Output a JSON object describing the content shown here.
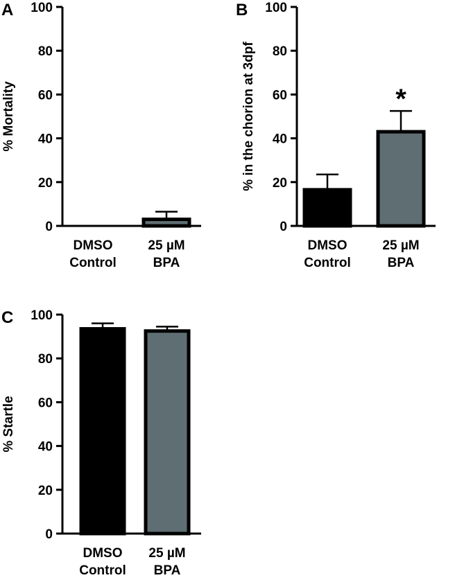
{
  "figure": {
    "panels": [
      {
        "id": "A",
        "letter": "A"
      },
      {
        "id": "B",
        "letter": "B"
      },
      {
        "id": "C",
        "letter": "C"
      }
    ]
  },
  "chart_data": [
    {
      "panel": "A",
      "type": "bar",
      "ylabel": "% Mortality",
      "ylim": [
        0,
        100
      ],
      "yticks": [
        0,
        20,
        40,
        60,
        80,
        100
      ],
      "categories": [
        {
          "line1": "DMSO",
          "line2": "Control"
        },
        {
          "line1": "25 µM",
          "line2": "BPA"
        }
      ],
      "values": [
        0,
        3
      ],
      "error": [
        0,
        3.5
      ],
      "bar_colors": [
        "#000000",
        "#5f6e73"
      ],
      "annotations": [],
      "grid": false,
      "legend": "none"
    },
    {
      "panel": "B",
      "type": "bar",
      "ylabel": "% in the chorion at 3dpf",
      "ylim": [
        0,
        100
      ],
      "yticks": [
        0,
        20,
        40,
        60,
        80,
        100
      ],
      "categories": [
        {
          "line1": "DMSO",
          "line2": "Control"
        },
        {
          "line1": "25 µM",
          "line2": "BPA"
        }
      ],
      "values": [
        16.5,
        43
      ],
      "error": [
        7,
        9.5
      ],
      "bar_colors": [
        "#000000",
        "#5f6e73"
      ],
      "annotations": [
        {
          "category_index": 1,
          "text": "*"
        }
      ],
      "grid": false,
      "legend": "none"
    },
    {
      "panel": "C",
      "type": "bar",
      "ylabel": "% Startle",
      "ylim": [
        0,
        100
      ],
      "yticks": [
        0,
        20,
        40,
        60,
        80,
        100
      ],
      "categories": [
        {
          "line1": "DMSO",
          "line2": "Control"
        },
        {
          "line1": "25 µM",
          "line2": "BPA"
        }
      ],
      "values": [
        93.5,
        92.5
      ],
      "error": [
        2.5,
        2
      ],
      "bar_colors": [
        "#000000",
        "#5f6e73"
      ],
      "annotations": [],
      "grid": false,
      "legend": "none"
    }
  ]
}
